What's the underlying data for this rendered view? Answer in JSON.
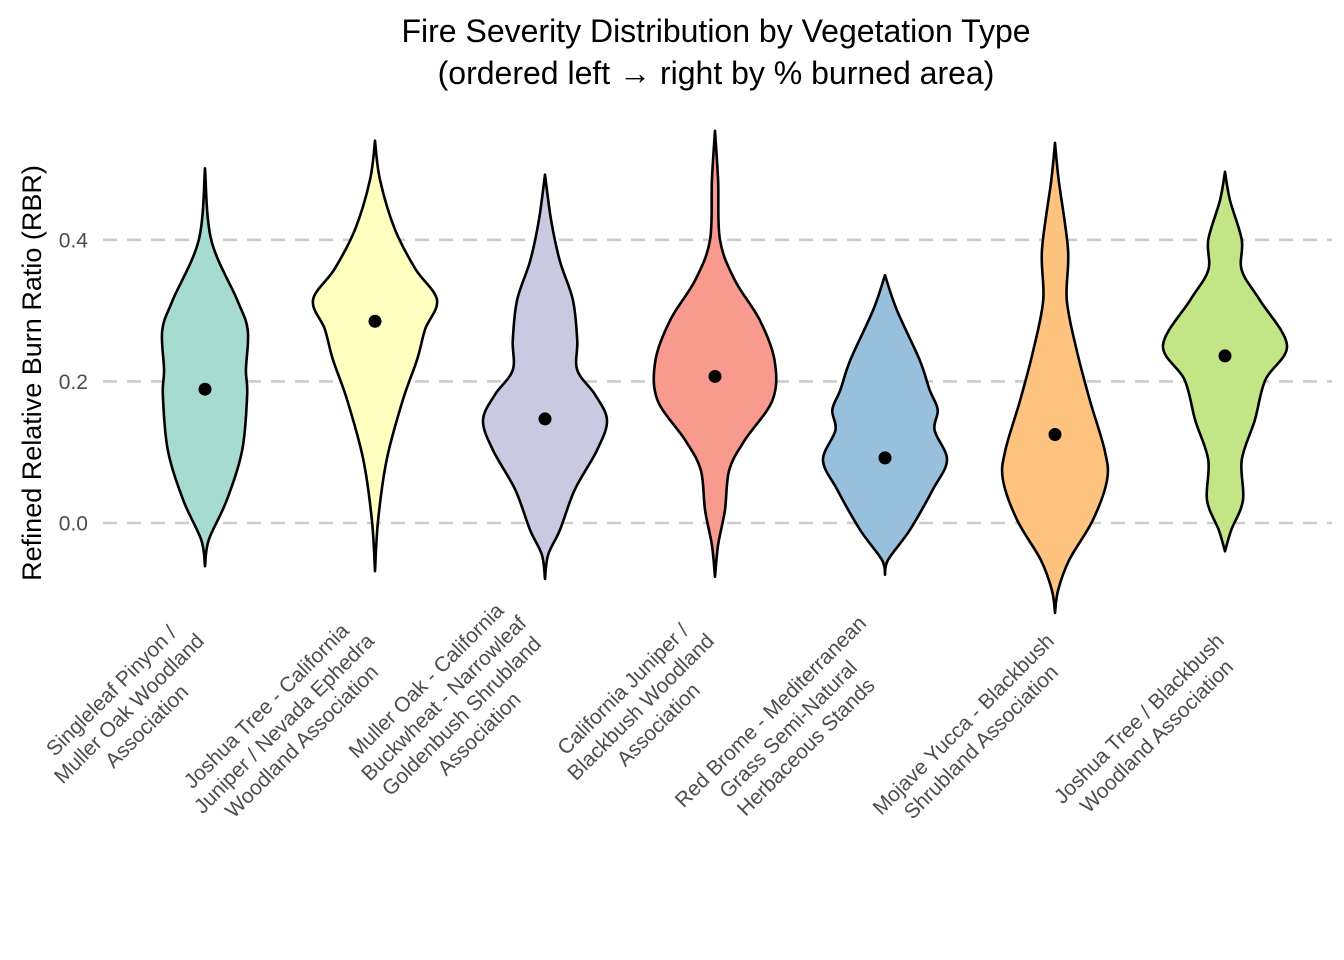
{
  "chart_data": {
    "type": "violin",
    "title": "Fire Severity Distribution by Vegetation Type",
    "subtitle": "(ordered left → right by % burned area)",
    "xlabel": "",
    "ylabel": "Refined Relative Burn Ratio (RBR)",
    "ylim": [
      -0.15,
      0.57
    ],
    "yticks": [
      0.0,
      0.2,
      0.4
    ],
    "ytick_labels": [
      "0.0",
      "0.2",
      "0.4"
    ],
    "grid": "horizontal-dashed",
    "legend": "none",
    "categories": [
      "Singleleaf Pinyon / Muller Oak Woodland Association",
      "Joshua Tree - California Juniper / Nevada Ephedra Woodland Association",
      "Muller Oak - California Buckwheat - Narrowleaf Goldenbush Shrubland Association",
      "California Juniper / Blackbush Woodland Association",
      "Red Brome - Mediterranean Grass Semi-Natural Herbaceous Stands",
      "Mojave Yucca - Blackbush Shrubland Association",
      "Joshua Tree / Blackbush Woodland Association"
    ],
    "category_label_lines": [
      [
        "Singleleaf Pinyon /",
        "Muller Oak Woodland",
        "Association"
      ],
      [
        "Joshua Tree - California",
        "Juniper / Nevada Ephedra",
        "Woodland Association"
      ],
      [
        "Muller Oak - California",
        "Buckwheat - Narrowleaf",
        "Goldenbush Shrubland",
        "Association"
      ],
      [
        "California Juniper /",
        "Blackbush Woodland",
        "Association"
      ],
      [
        "Red Brome - Mediterranean",
        "Grass Semi-Natural",
        "Herbaceous Stands"
      ],
      [
        "Mojave Yucca - Blackbush",
        "Shrubland Association"
      ],
      [
        "Joshua Tree / Blackbush",
        "Woodland Association"
      ]
    ],
    "series": [
      {
        "name": "Singleleaf Pinyon / Muller Oak Woodland Association",
        "color": "#a6dbd0",
        "center": 0.189,
        "min": -0.061,
        "max": 0.501,
        "density": {
          "y": [
            0.501,
            0.4,
            0.315,
            0.272,
            0.216,
            0.181,
            0.103,
            0.032,
            -0.024,
            -0.061
          ],
          "w": [
            0.0,
            0.1,
            0.52,
            0.69,
            0.66,
            0.68,
            0.6,
            0.35,
            0.06,
            0.0
          ]
        }
      },
      {
        "name": "Joshua Tree - California Juniper / Nevada Ephedra Woodland Association",
        "color": "#ffffc0",
        "center": 0.285,
        "min": -0.068,
        "max": 0.54,
        "density": {
          "y": [
            0.54,
            0.485,
            0.415,
            0.359,
            0.315,
            0.274,
            0.231,
            0.174,
            0.09,
            0.004,
            -0.068
          ],
          "w": [
            0.0,
            0.08,
            0.32,
            0.65,
            1.0,
            0.81,
            0.68,
            0.45,
            0.19,
            0.05,
            0.0
          ]
        }
      },
      {
        "name": "Muller Oak - California Buckwheat - Narrowleaf Goldenbush Shrubland Association",
        "color": "#cac9e2",
        "center": 0.147,
        "min": -0.079,
        "max": 0.492,
        "density": {
          "y": [
            0.492,
            0.427,
            0.37,
            0.315,
            0.258,
            0.216,
            0.181,
            0.145,
            0.103,
            0.047,
            -0.01,
            -0.045,
            -0.079
          ],
          "w": [
            0.0,
            0.1,
            0.24,
            0.45,
            0.52,
            0.52,
            0.81,
            1.0,
            0.84,
            0.48,
            0.24,
            0.05,
            0.0
          ]
        }
      },
      {
        "name": "California Juniper / Blackbush Woodland Association",
        "color": "#f89a8e",
        "center": 0.207,
        "min": -0.076,
        "max": 0.554,
        "density": {
          "y": [
            0.554,
            0.484,
            0.4,
            0.343,
            0.287,
            0.23,
            0.174,
            0.117,
            0.075,
            0.018,
            -0.031,
            -0.076
          ],
          "w": [
            0.0,
            0.05,
            0.08,
            0.32,
            0.72,
            0.96,
            0.93,
            0.48,
            0.23,
            0.16,
            0.05,
            0.0
          ]
        }
      },
      {
        "name": "Red Brome - Mediterranean Grass Semi-Natural Herbaceous Stands",
        "color": "#98bfdc",
        "center": 0.092,
        "min": -0.073,
        "max": 0.35,
        "density": {
          "y": [
            0.35,
            0.301,
            0.23,
            0.188,
            0.16,
            0.131,
            0.089,
            0.047,
            -0.01,
            -0.052,
            -0.073
          ],
          "w": [
            0.0,
            0.19,
            0.56,
            0.72,
            0.85,
            0.8,
            1.0,
            0.77,
            0.4,
            0.05,
            0.0
          ]
        }
      },
      {
        "name": "Mojave Yucca - Blackbush Shrubland Association",
        "color": "#fec47f",
        "center": 0.125,
        "min": -0.127,
        "max": 0.537,
        "density": {
          "y": [
            0.537,
            0.484,
            0.386,
            0.315,
            0.244,
            0.174,
            0.103,
            0.061,
            0.004,
            -0.052,
            -0.095,
            -0.127
          ],
          "w": [
            0.0,
            0.06,
            0.21,
            0.19,
            0.35,
            0.56,
            0.8,
            0.84,
            0.61,
            0.23,
            0.05,
            0.0
          ]
        }
      },
      {
        "name": "Joshua Tree / Blackbush Woodland Association",
        "color": "#c2e586",
        "center": 0.236,
        "min": -0.04,
        "max": 0.496,
        "density": {
          "y": [
            0.496,
            0.456,
            0.4,
            0.357,
            0.315,
            0.251,
            0.202,
            0.145,
            0.089,
            0.032,
            -0.01,
            -0.04
          ],
          "w": [
            0.0,
            0.08,
            0.27,
            0.27,
            0.56,
            1.0,
            0.65,
            0.48,
            0.27,
            0.29,
            0.1,
            0.0
          ]
        }
      }
    ]
  }
}
